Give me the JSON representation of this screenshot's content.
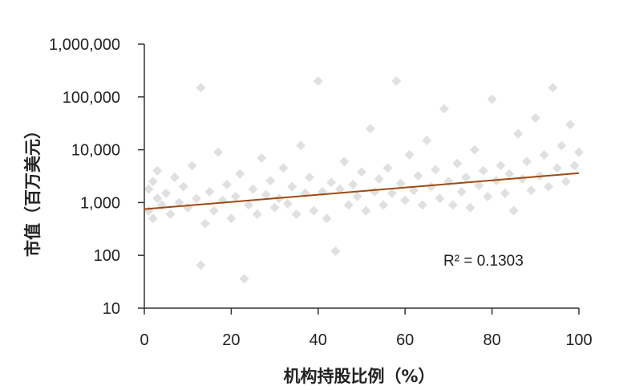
{
  "chart_data": {
    "type": "scatter",
    "title": "",
    "xlabel": "机构持股比例（%）",
    "ylabel": "市值（百万美元）",
    "xlim": [
      0,
      100
    ],
    "ylim": [
      10,
      1000000
    ],
    "y_scale": "log",
    "x_ticks": [
      "0",
      "20",
      "40",
      "60",
      "80",
      "100"
    ],
    "y_ticks": [
      "10",
      "100",
      "1,000",
      "10,000",
      "100,000",
      "1,000,000"
    ],
    "y_tick_values": [
      10,
      100,
      1000,
      10000,
      100000,
      1000000
    ],
    "x_tick_values": [
      0,
      20,
      40,
      60,
      80,
      100
    ],
    "grid": false,
    "legend": "none",
    "marker": "diamond",
    "point_color": "#d0d0d0",
    "trendline": {
      "type": "power",
      "x": [
        0,
        100
      ],
      "y": [
        750,
        3600
      ],
      "color": "#9c4a12",
      "r_squared_label": "R² = 0.1303"
    },
    "series": [
      {
        "points": [
          [
            1,
            1800
          ],
          [
            1,
            700
          ],
          [
            2,
            2500
          ],
          [
            2,
            500
          ],
          [
            3,
            1200
          ],
          [
            3,
            4000
          ],
          [
            4,
            900
          ],
          [
            5,
            1500
          ],
          [
            6,
            600
          ],
          [
            7,
            3000
          ],
          [
            8,
            1000
          ],
          [
            9,
            2000
          ],
          [
            10,
            800
          ],
          [
            11,
            5000
          ],
          [
            12,
            1200
          ],
          [
            13,
            150000
          ],
          [
            13,
            65
          ],
          [
            14,
            400
          ],
          [
            15,
            1600
          ],
          [
            16,
            700
          ],
          [
            17,
            9000
          ],
          [
            18,
            1100
          ],
          [
            19,
            2200
          ],
          [
            20,
            500
          ],
          [
            21,
            1300
          ],
          [
            22,
            3500
          ],
          [
            23,
            36
          ],
          [
            24,
            900
          ],
          [
            25,
            1800
          ],
          [
            26,
            600
          ],
          [
            27,
            7000
          ],
          [
            28,
            1400
          ],
          [
            29,
            2600
          ],
          [
            30,
            800
          ],
          [
            31,
            1200
          ],
          [
            32,
            4500
          ],
          [
            33,
            950
          ],
          [
            34,
            2000
          ],
          [
            35,
            600
          ],
          [
            36,
            12000
          ],
          [
            37,
            1500
          ],
          [
            38,
            3000
          ],
          [
            39,
            700
          ],
          [
            40,
            200000
          ],
          [
            41,
            1600
          ],
          [
            42,
            500
          ],
          [
            43,
            2400
          ],
          [
            44,
            120
          ],
          [
            45,
            1800
          ],
          [
            46,
            6000
          ],
          [
            47,
            900
          ],
          [
            48,
            2200
          ],
          [
            49,
            1300
          ],
          [
            50,
            3800
          ],
          [
            51,
            700
          ],
          [
            52,
            25000
          ],
          [
            53,
            1600
          ],
          [
            54,
            2800
          ],
          [
            55,
            900
          ],
          [
            56,
            4500
          ],
          [
            57,
            1500
          ],
          [
            58,
            200000
          ],
          [
            59,
            2300
          ],
          [
            60,
            1100
          ],
          [
            61,
            8000
          ],
          [
            62,
            1700
          ],
          [
            63,
            3200
          ],
          [
            64,
            900
          ],
          [
            65,
            15000
          ],
          [
            66,
            2000
          ],
          [
            67,
            4200
          ],
          [
            68,
            1200
          ],
          [
            69,
            60000
          ],
          [
            70,
            2500
          ],
          [
            71,
            900
          ],
          [
            72,
            5500
          ],
          [
            73,
            1600
          ],
          [
            74,
            3000
          ],
          [
            75,
            800
          ],
          [
            76,
            10000
          ],
          [
            77,
            2100
          ],
          [
            78,
            4000
          ],
          [
            79,
            1300
          ],
          [
            80,
            90000
          ],
          [
            81,
            2600
          ],
          [
            82,
            5000
          ],
          [
            83,
            1500
          ],
          [
            84,
            3500
          ],
          [
            85,
            700
          ],
          [
            86,
            20000
          ],
          [
            87,
            2800
          ],
          [
            88,
            6000
          ],
          [
            89,
            1700
          ],
          [
            90,
            40000
          ],
          [
            91,
            3200
          ],
          [
            92,
            8000
          ],
          [
            93,
            2000
          ],
          [
            94,
            150000
          ],
          [
            95,
            4500
          ],
          [
            96,
            12000
          ],
          [
            97,
            2500
          ],
          [
            98,
            30000
          ],
          [
            99,
            5000
          ],
          [
            100,
            9000
          ]
        ]
      }
    ]
  }
}
